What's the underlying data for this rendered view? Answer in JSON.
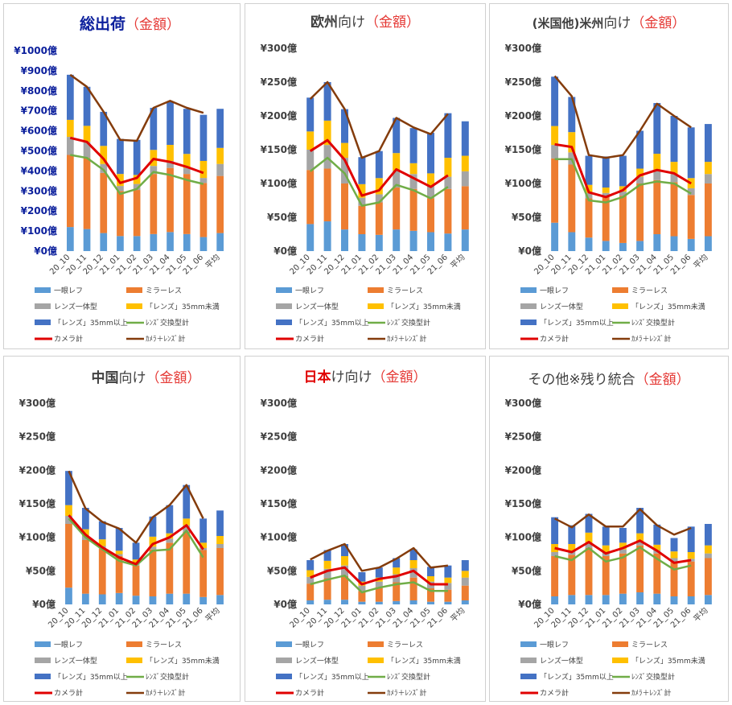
{
  "categories": [
    "20_10",
    "20_11",
    "20_12",
    "21_01",
    "21_02",
    "21_03",
    "21_04",
    "21_05",
    "21_06",
    "平均"
  ],
  "series_names": {
    "slr": "一眼レフ",
    "mirrorless": "ミラーレス",
    "lens_integrated": "レンズ一体型",
    "lens_small": "「レンズ」35mm未満",
    "lens_large": "「レンズ」35mm以上",
    "lens_total": "ﾚﾝｽﾞ交換型計",
    "camera_total": "カメラ計",
    "camera_lens_total": "ｶﾒﾗ＋ﾚﾝｽﾞ計"
  },
  "colors": {
    "slr": "#5b9bd5",
    "mirrorless": "#ed7d31",
    "lens_integrated": "#a5a5a5",
    "lens_small": "#ffc000",
    "lens_large": "#4472c4",
    "lens_total": "#70ad47",
    "camera_total": "#e00000",
    "camera_lens_total": "#843c0c"
  },
  "chart_data": [
    {
      "type": "bar",
      "stacked": true,
      "title_main": "総出荷",
      "title_suffix": "（金額）",
      "ylim": [
        0,
        1000
      ],
      "yticks": [
        "¥0億",
        "¥100億",
        "¥200億",
        "¥300億",
        "¥400億",
        "¥500億",
        "¥600億",
        "¥700億",
        "¥800億",
        "¥900億",
        "¥1000億"
      ],
      "series": {
        "slr": [
          120,
          110,
          90,
          75,
          75,
          85,
          95,
          85,
          70,
          90
        ],
        "mirrorless": [
          360,
          355,
          300,
          225,
          230,
          300,
          320,
          300,
          270,
          285
        ],
        "lens_integrated": [
          90,
          80,
          45,
          25,
          30,
          40,
          35,
          30,
          25,
          60
        ],
        "lens_small": [
          85,
          80,
          90,
          60,
          45,
          80,
          80,
          70,
          85,
          80
        ],
        "lens_large": [
          225,
          195,
          170,
          175,
          175,
          210,
          215,
          225,
          230,
          195
        ]
      },
      "lines": {
        "lens_total": [
          480,
          465,
          405,
          285,
          310,
          395,
          380,
          355,
          335,
          null
        ],
        "camera_total": [
          565,
          545,
          460,
          340,
          365,
          460,
          445,
          420,
          390,
          null
        ],
        "camera_lens_total": [
          880,
          820,
          695,
          555,
          550,
          715,
          750,
          715,
          690,
          null
        ]
      }
    },
    {
      "type": "bar",
      "stacked": true,
      "title_main": "欧州",
      "title_rest": "向け",
      "title_suffix": "（金額）",
      "ylim": [
        0,
        300
      ],
      "yticks": [
        "¥0億",
        "¥50億",
        "¥100億",
        "¥150億",
        "¥200億",
        "¥250億",
        "¥300億"
      ],
      "series": {
        "slr": [
          40,
          44,
          32,
          25,
          24,
          32,
          30,
          28,
          26,
          32
        ],
        "mirrorless": [
          80,
          78,
          68,
          42,
          48,
          62,
          62,
          50,
          66,
          64
        ],
        "lens_integrated": [
          30,
          35,
          38,
          12,
          12,
          25,
          22,
          18,
          18,
          22
        ],
        "lens_small": [
          27,
          36,
          22,
          20,
          24,
          26,
          16,
          19,
          28,
          23
        ],
        "lens_large": [
          50,
          57,
          50,
          40,
          40,
          52,
          52,
          60,
          66,
          51
        ]
      },
      "lines": {
        "lens_total": [
          118,
          138,
          115,
          67,
          72,
          98,
          90,
          78,
          95,
          null
        ],
        "camera_total": [
          148,
          164,
          135,
          82,
          90,
          121,
          108,
          95,
          112,
          null
        ],
        "camera_lens_total": [
          225,
          250,
          210,
          138,
          148,
          197,
          183,
          173,
          203,
          null
        ]
      }
    },
    {
      "type": "bar",
      "stacked": true,
      "title_main": "(米国他)米州",
      "title_rest": "向け",
      "title_suffix": "（金額）",
      "ylim": [
        0,
        300
      ],
      "yticks": [
        "¥0億",
        "¥50億",
        "¥100億",
        "¥150億",
        "¥200億",
        "¥250億",
        "¥300億"
      ],
      "series": {
        "slr": [
          42,
          28,
          20,
          15,
          12,
          15,
          25,
          22,
          18,
          22
        ],
        "mirrorless": [
          95,
          100,
          58,
          65,
          70,
          85,
          80,
          80,
          65,
          78
        ],
        "lens_integrated": [
          20,
          18,
          8,
          6,
          6,
          10,
          15,
          12,
          10,
          14
        ],
        "lens_small": [
          28,
          30,
          12,
          8,
          8,
          12,
          24,
          18,
          15,
          18
        ],
        "lens_large": [
          73,
          52,
          43,
          46,
          45,
          56,
          75,
          68,
          75,
          56
        ]
      },
      "lines": {
        "lens_total": [
          136,
          136,
          75,
          72,
          80,
          98,
          103,
          100,
          85,
          null
        ],
        "camera_total": [
          158,
          154,
          87,
          80,
          90,
          112,
          120,
          115,
          100,
          null
        ],
        "camera_lens_total": [
          259,
          229,
          142,
          138,
          142,
          178,
          218,
          200,
          183,
          null
        ]
      }
    },
    {
      "type": "bar",
      "stacked": true,
      "title_main": "中国",
      "title_rest": "向け",
      "title_suffix": "（金額）",
      "ylim": [
        0,
        300
      ],
      "yticks": [
        "¥0億",
        "¥50億",
        "¥100億",
        "¥150億",
        "¥200億",
        "¥250億",
        "¥300億"
      ],
      "series": {
        "slr": [
          25,
          16,
          15,
          17,
          13,
          12,
          16,
          16,
          11,
          14
        ],
        "mirrorless": [
          95,
          80,
          68,
          55,
          45,
          70,
          76,
          92,
          70,
          70
        ],
        "lens_integrated": [
          12,
          6,
          4,
          3,
          3,
          4,
          6,
          10,
          3,
          6
        ],
        "lens_small": [
          16,
          10,
          10,
          5,
          6,
          15,
          8,
          10,
          8,
          12
        ],
        "lens_large": [
          51,
          32,
          27,
          34,
          25,
          30,
          42,
          50,
          36,
          38
        ]
      },
      "lines": {
        "lens_total": [
          128,
          100,
          82,
          65,
          58,
          80,
          82,
          110,
          70,
          null
        ],
        "camera_total": [
          133,
          104,
          85,
          70,
          60,
          90,
          100,
          118,
          82,
          null
        ],
        "camera_lens_total": [
          199,
          143,
          123,
          113,
          92,
          130,
          148,
          178,
          128,
          null
        ]
      }
    },
    {
      "type": "bar",
      "stacked": true,
      "title_main": "日本",
      "title_rest": "け向け",
      "title_suffix": "（金額）",
      "ylim": [
        0,
        300
      ],
      "yticks": [
        "¥0億",
        "¥50億",
        "¥100億",
        "¥150億",
        "¥200億",
        "¥250億",
        "¥300億"
      ],
      "series": {
        "slr": [
          6,
          7,
          7,
          4,
          4,
          5,
          6,
          4,
          4,
          6
        ],
        "mirrorless": [
          25,
          32,
          35,
          16,
          22,
          28,
          34,
          20,
          18,
          22
        ],
        "lens_integrated": [
          10,
          14,
          16,
          8,
          8,
          12,
          14,
          10,
          10,
          12
        ],
        "lens_small": [
          10,
          12,
          14,
          6,
          6,
          10,
          12,
          8,
          8,
          10
        ],
        "lens_large": [
          15,
          16,
          18,
          14,
          15,
          14,
          16,
          14,
          18,
          16
        ]
      },
      "lines": {
        "lens_total": [
          30,
          37,
          43,
          18,
          25,
          30,
          33,
          20,
          20,
          null
        ],
        "camera_total": [
          40,
          50,
          55,
          30,
          38,
          42,
          50,
          30,
          30,
          null
        ],
        "camera_lens_total": [
          67,
          80,
          90,
          50,
          55,
          68,
          84,
          55,
          58,
          null
        ]
      }
    },
    {
      "type": "bar",
      "stacked": true,
      "title_main": "その他※残り統合",
      "title_suffix": "（金額）",
      "ylim": [
        0,
        300
      ],
      "yticks": [
        "¥0億",
        "¥50億",
        "¥100億",
        "¥150億",
        "¥200億",
        "¥250億",
        "¥300億"
      ],
      "series": {
        "slr": [
          12,
          14,
          14,
          14,
          16,
          18,
          16,
          12,
          12,
          14
        ],
        "mirrorless": [
          60,
          60,
          70,
          58,
          60,
          70,
          60,
          52,
          52,
          55
        ],
        "lens_integrated": [
          6,
          6,
          8,
          6,
          6,
          6,
          5,
          5,
          4,
          7
        ],
        "lens_small": [
          12,
          10,
          15,
          10,
          10,
          12,
          8,
          10,
          10,
          12
        ],
        "lens_large": [
          40,
          28,
          28,
          28,
          22,
          38,
          30,
          20,
          38,
          32
        ]
      },
      "lines": {
        "lens_total": [
          72,
          66,
          84,
          64,
          70,
          85,
          68,
          52,
          58,
          null
        ],
        "camera_total": [
          84,
          78,
          93,
          76,
          84,
          95,
          80,
          62,
          66,
          null
        ],
        "camera_lens_total": [
          128,
          115,
          134,
          116,
          116,
          142,
          118,
          104,
          114,
          null
        ]
      }
    }
  ]
}
